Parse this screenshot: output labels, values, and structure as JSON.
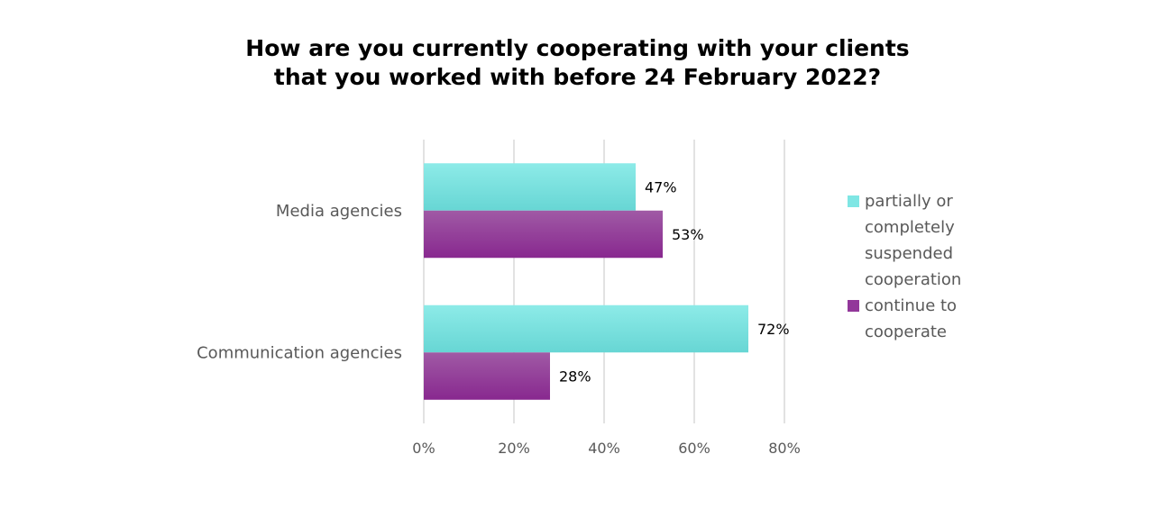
{
  "chart_data": {
    "type": "bar",
    "orientation": "horizontal",
    "title": "How are you currently cooperating with your clients that you worked with before 24 February 2022?",
    "title_lines": [
      "How are you currently cooperating with your clients",
      "that you worked with before 24 February 2022?"
    ],
    "categories": [
      "Media agencies",
      "Communication agencies"
    ],
    "series": [
      {
        "name": "partially or completely suspended cooperation",
        "values": [
          47,
          72
        ],
        "labels": [
          "47%",
          "72%"
        ],
        "color": "#7FE6E4"
      },
      {
        "name": "continue to cooperate",
        "values": [
          53,
          28
        ],
        "labels": [
          "53%",
          "28%"
        ],
        "color": "#92379A"
      }
    ],
    "xlim": [
      0,
      80
    ],
    "xticks": [
      "0%",
      "20%",
      "40%",
      "60%",
      "80%"
    ],
    "xlabel": "",
    "ylabel": "",
    "grid": true,
    "legend": "right"
  }
}
